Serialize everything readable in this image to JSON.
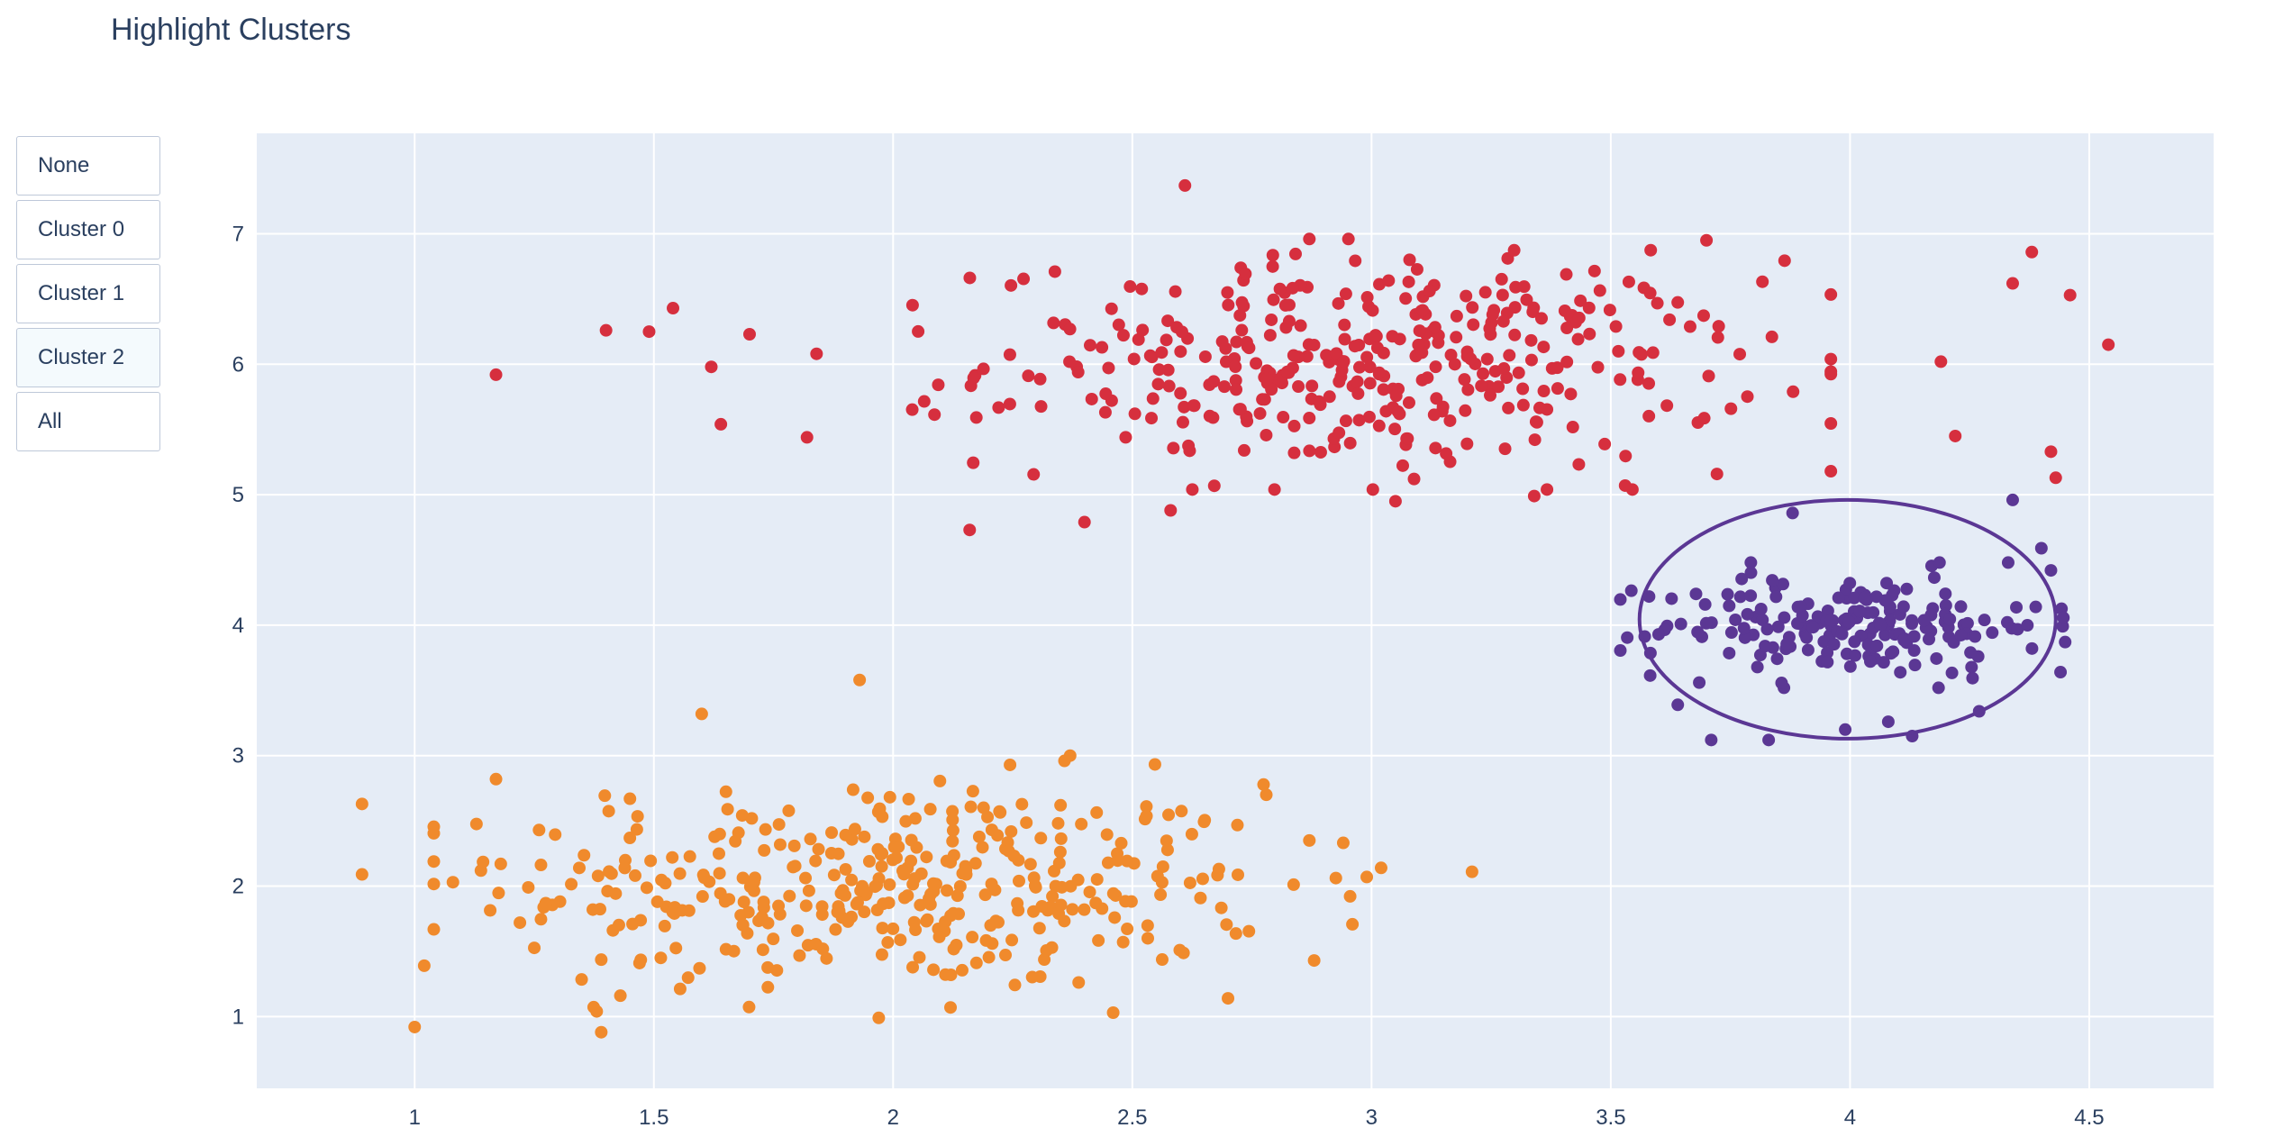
{
  "header": {
    "title": "Highlight Clusters"
  },
  "controls": {
    "buttons": [
      {
        "label": "None",
        "active": false
      },
      {
        "label": "Cluster 0",
        "active": false
      },
      {
        "label": "Cluster 1",
        "active": false
      },
      {
        "label": "Cluster 2",
        "active": true
      },
      {
        "label": "All",
        "active": false
      }
    ]
  },
  "chart_data": {
    "type": "scatter",
    "title": "Highlight Clusters",
    "xlabel": "",
    "ylabel": "",
    "xlim": [
      0.67,
      4.76
    ],
    "ylim": [
      0.45,
      7.77
    ],
    "x_ticks": [
      1,
      1.5,
      2,
      2.5,
      3,
      3.5,
      4,
      4.5
    ],
    "x_tick_labels": [
      "1",
      "1.5",
      "2",
      "2.5",
      "3",
      "3.5",
      "4",
      "4.5"
    ],
    "y_ticks": [
      1,
      2,
      3,
      4,
      5,
      6,
      7
    ],
    "y_tick_labels": [
      "1",
      "2",
      "3",
      "4",
      "5",
      "6",
      "7"
    ],
    "grid": true,
    "legend": "none",
    "colors": {
      "plot_background": "#e5ecf6",
      "grid": "#ffffff",
      "highlight_shape": "#5b3794"
    },
    "series": [
      {
        "color": "#f08a2c",
        "center": [
          2.0,
          2.0
        ],
        "spread": [
          0.4,
          0.4
        ],
        "count": 400,
        "points": [
          [
            0.89,
            2.63
          ],
          [
            0.89,
            2.09
          ],
          [
            1.0,
            0.92
          ],
          [
            1.02,
            1.39
          ],
          [
            1.08,
            2.03
          ],
          [
            1.17,
            2.82
          ],
          [
            1.18,
            2.17
          ],
          [
            1.22,
            1.72
          ],
          [
            1.26,
            2.43
          ],
          [
            1.39,
            0.88
          ],
          [
            1.43,
            1.16
          ],
          [
            1.45,
            2.67
          ],
          [
            1.47,
            1.41
          ],
          [
            1.6,
            3.32
          ],
          [
            1.93,
            3.58
          ],
          [
            1.97,
            0.99
          ],
          [
            2.12,
            1.07
          ],
          [
            2.46,
            1.03
          ],
          [
            2.7,
            1.14
          ],
          [
            2.78,
            2.7
          ],
          [
            2.87,
            2.35
          ],
          [
            2.88,
            1.43
          ],
          [
            2.99,
            2.07
          ],
          [
            3.02,
            2.14
          ],
          [
            3.21,
            2.11
          ],
          [
            2.37,
            3.0
          ],
          [
            2.35,
            2.62
          ]
        ]
      },
      {
        "color": "#d62f3e",
        "center": [
          3.0,
          6.0
        ],
        "spread": [
          0.4,
          0.4
        ],
        "count": 400,
        "points": [
          [
            1.17,
            5.92
          ],
          [
            1.4,
            6.26
          ],
          [
            1.49,
            6.25
          ],
          [
            1.54,
            6.43
          ],
          [
            1.62,
            5.98
          ],
          [
            1.64,
            5.54
          ],
          [
            1.7,
            6.23
          ],
          [
            1.84,
            6.08
          ],
          [
            1.82,
            5.44
          ],
          [
            2.16,
            4.73
          ],
          [
            2.4,
            4.79
          ],
          [
            2.58,
            4.88
          ],
          [
            2.61,
            7.37
          ],
          [
            2.87,
            6.96
          ],
          [
            3.05,
            4.95
          ],
          [
            3.34,
            4.99
          ],
          [
            3.53,
            5.07
          ],
          [
            3.7,
            6.95
          ],
          [
            3.96,
            5.18
          ],
          [
            4.38,
            6.86
          ],
          [
            4.46,
            6.53
          ],
          [
            4.54,
            6.15
          ],
          [
            4.43,
            5.13
          ],
          [
            4.42,
            5.33
          ],
          [
            4.34,
            6.62
          ],
          [
            4.22,
            5.45
          ],
          [
            4.19,
            6.02
          ]
        ]
      },
      {
        "color": "#5b3794",
        "center": [
          4.0,
          4.0
        ],
        "spread": [
          0.2,
          0.2
        ],
        "count": 200,
        "points": [
          [
            3.58,
            4.22
          ],
          [
            3.6,
            3.93
          ],
          [
            3.64,
            3.39
          ],
          [
            3.71,
            3.12
          ],
          [
            3.83,
            3.12
          ],
          [
            3.88,
            4.86
          ],
          [
            3.99,
            3.2
          ],
          [
            4.08,
            3.26
          ],
          [
            4.13,
            3.15
          ],
          [
            4.27,
            3.34
          ],
          [
            4.34,
            4.96
          ],
          [
            4.4,
            4.59
          ],
          [
            4.44,
            3.64
          ],
          [
            4.42,
            4.42
          ]
        ]
      }
    ],
    "highlight_shape": {
      "type": "ellipse",
      "x0": 3.56,
      "x1": 4.43,
      "y0": 3.13,
      "y1": 4.96
    }
  }
}
